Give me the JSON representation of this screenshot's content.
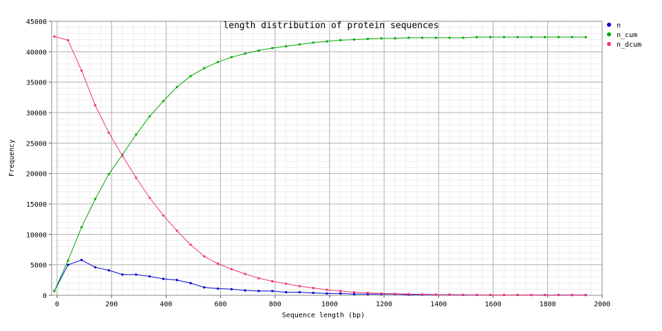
{
  "chart_data": {
    "type": "line",
    "title": "length distribution of protein sequences",
    "xlabel": "Sequence length (bp)",
    "ylabel": "Frequency",
    "xlim": [
      -20,
      2000
    ],
    "ylim": [
      0,
      45000
    ],
    "xticks": [
      0,
      200,
      400,
      600,
      800,
      1000,
      1200,
      1400,
      1600,
      1800,
      2000
    ],
    "yticks": [
      0,
      5000,
      10000,
      15000,
      20000,
      25000,
      30000,
      35000,
      40000,
      45000
    ],
    "grid": true,
    "legend_position": "right",
    "x": [
      -10,
      40,
      90,
      140,
      190,
      240,
      290,
      340,
      390,
      440,
      490,
      540,
      590,
      640,
      690,
      740,
      790,
      840,
      890,
      940,
      990,
      1040,
      1090,
      1140,
      1190,
      1240,
      1290,
      1340,
      1390,
      1440,
      1490,
      1540,
      1590,
      1640,
      1690,
      1740,
      1790,
      1840,
      1890,
      1940
    ],
    "series": [
      {
        "name": "n",
        "color": "#0000cc",
        "values": [
          700,
          5000,
          5800,
          4600,
          4100,
          3400,
          3400,
          3100,
          2700,
          2500,
          2000,
          1300,
          1100,
          1000,
          800,
          700,
          700,
          500,
          500,
          400,
          300,
          300,
          200,
          200,
          200,
          200,
          100,
          100,
          100,
          100,
          50,
          50,
          50,
          50,
          50,
          50,
          50,
          50,
          50,
          50
        ]
      },
      {
        "name": "n_cum",
        "color": "#00aa00",
        "values": [
          700,
          5700,
          11200,
          15800,
          19900,
          23100,
          26400,
          29400,
          31900,
          34200,
          36000,
          37300,
          38300,
          39100,
          39700,
          40200,
          40600,
          40900,
          41200,
          41500,
          41700,
          41900,
          42000,
          42100,
          42200,
          42200,
          42300,
          42300,
          42300,
          42300,
          42300,
          42400,
          42400,
          42400,
          42400,
          42400,
          42400,
          42400,
          42400,
          42400
        ]
      },
      {
        "name": "n_dcum",
        "color": "#ee3377",
        "values": [
          42500,
          41900,
          36900,
          31200,
          26700,
          22900,
          19300,
          16000,
          13100,
          10600,
          8300,
          6400,
          5200,
          4300,
          3500,
          2800,
          2300,
          1900,
          1500,
          1200,
          900,
          700,
          500,
          400,
          300,
          250,
          200,
          150,
          120,
          100,
          80,
          70,
          60,
          50,
          50,
          40,
          40,
          40,
          30,
          30
        ]
      }
    ]
  }
}
